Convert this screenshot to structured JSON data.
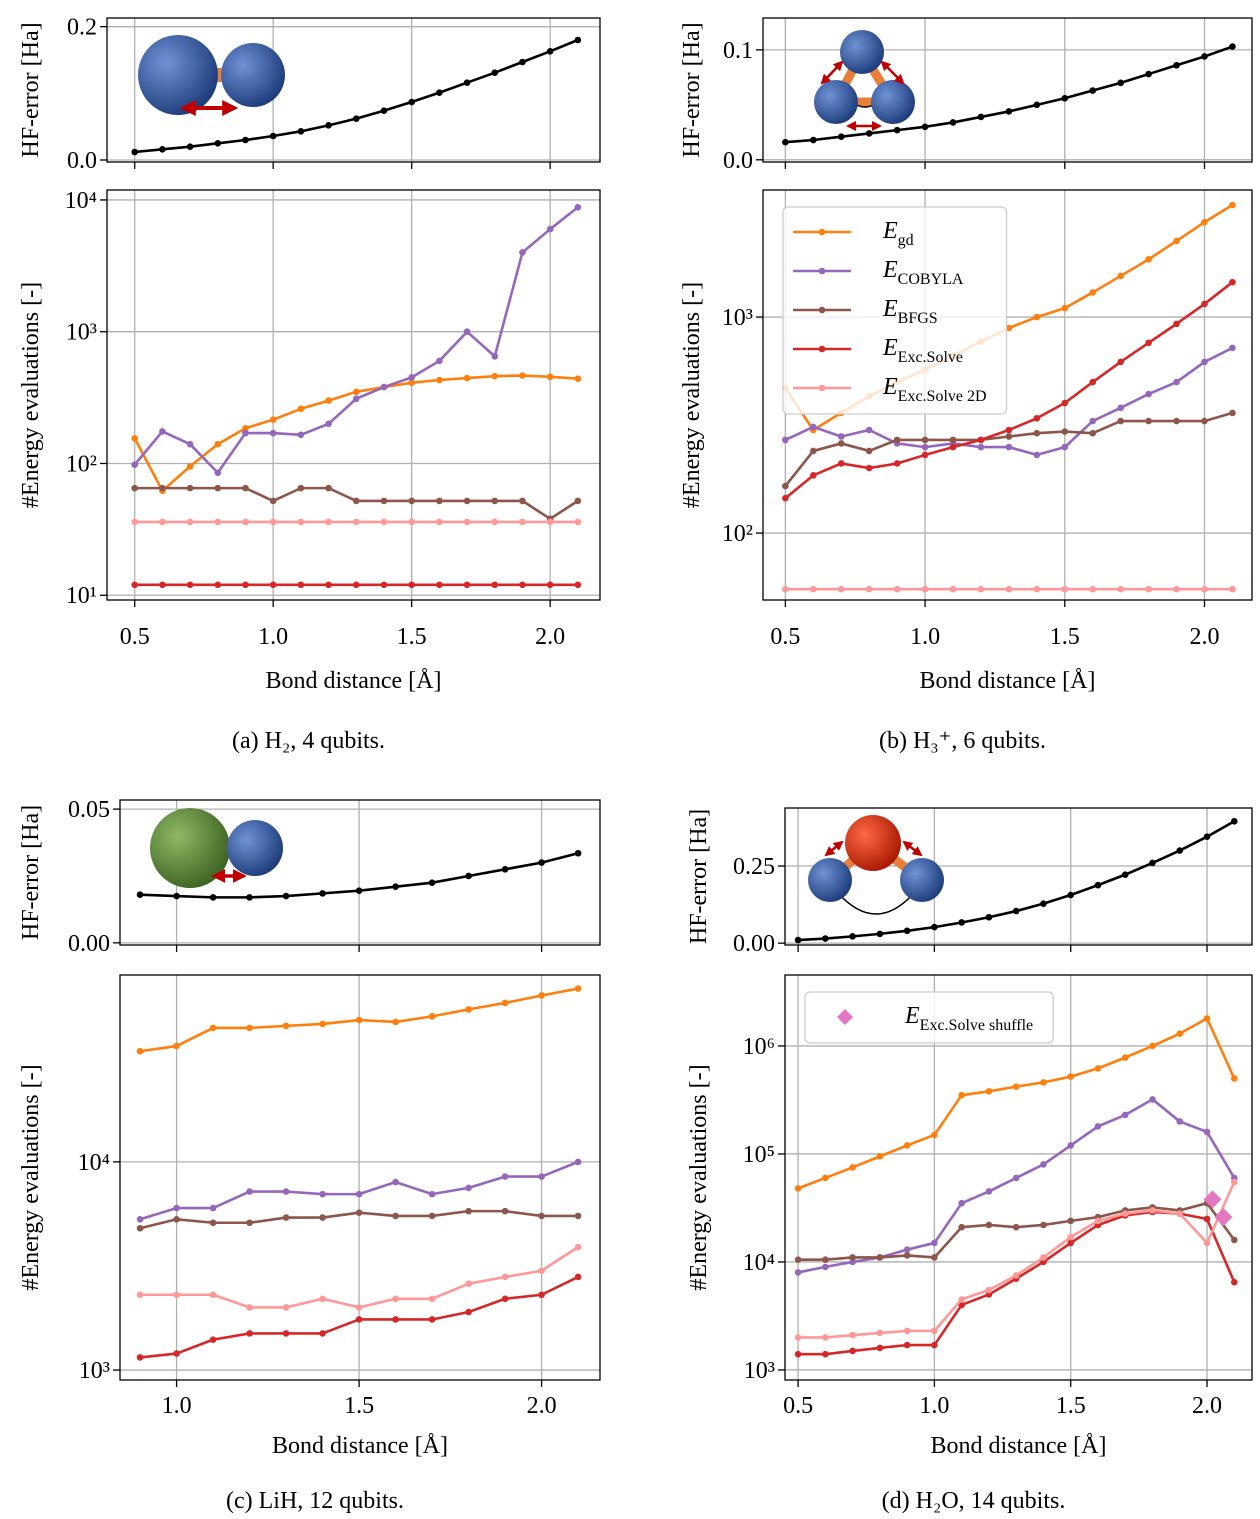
{
  "chart_data": [
    {
      "type": "line",
      "ylabel": "HF-error [Ha]",
      "x": [
        0.5,
        0.6,
        0.7,
        0.8,
        0.9,
        1.0,
        1.1,
        1.2,
        1.3,
        1.4,
        1.5,
        1.6,
        1.7,
        1.8,
        1.9,
        2.0,
        2.1
      ],
      "series": [
        {
          "color": "#000000",
          "values": [
            0.012,
            0.016,
            0.02,
            0.025,
            0.03,
            0.036,
            0.043,
            0.052,
            0.062,
            0.074,
            0.087,
            0.101,
            0.116,
            0.131,
            0.147,
            0.163,
            0.18
          ]
        }
      ],
      "xlim": [
        0.4,
        2.18
      ],
      "ylim": [
        -0.003,
        0.213
      ],
      "xticks": [
        0.5,
        {
          "value": 1.0,
          "label": "1.0"
        },
        1.5,
        {
          "value": 2.0,
          "label": "2.0"
        }
      ],
      "yticks": [
        {
          "value": 0,
          "label": "0.0"
        },
        0.2
      ],
      "grid": true
    },
    {
      "type": "line",
      "ylabel": "#Energy evaluations [-]",
      "xlabel": "Bond distance [Å]",
      "caption": "(a) H₂, 4 qubits.",
      "yscale": "log",
      "x": [
        0.5,
        0.6,
        0.7,
        0.8,
        0.9,
        1.0,
        1.1,
        1.2,
        1.3,
        1.4,
        1.5,
        1.6,
        1.7,
        1.8,
        1.9,
        2.0,
        2.1
      ],
      "series": [
        {
          "color": "#ff7f0e",
          "values": [
            155,
            62,
            95,
            140,
            185,
            215,
            260,
            300,
            350,
            380,
            410,
            430,
            445,
            460,
            465,
            455,
            440
          ]
        },
        {
          "color": "#9467bd",
          "values": [
            98,
            175,
            140,
            85,
            170,
            170,
            165,
            200,
            310,
            380,
            450,
            600,
            1000,
            650,
            4000,
            6000,
            8800
          ]
        },
        {
          "color": "#8c564b",
          "values": [
            65,
            65,
            65,
            65,
            65,
            52,
            65,
            65,
            52,
            52,
            52,
            52,
            52,
            52,
            52,
            38,
            52
          ]
        },
        {
          "color": "#d62728",
          "values": [
            12,
            12,
            12,
            12,
            12,
            12,
            12,
            12,
            12,
            12,
            12,
            12,
            12,
            12,
            12,
            12,
            12
          ]
        },
        {
          "color": "#ff9896",
          "values": [
            36,
            36,
            36,
            36,
            36,
            36,
            36,
            36,
            36,
            36,
            36,
            36,
            36,
            36,
            36,
            36,
            36
          ]
        }
      ],
      "xlim": [
        0.4,
        2.18
      ],
      "ylim": [
        9.2,
        11900
      ],
      "xticks": [
        0.5,
        {
          "value": 1.0,
          "label": "1.0"
        },
        1.5,
        {
          "value": 2.0,
          "label": "2.0"
        }
      ],
      "yticks": [
        {
          "value": 10,
          "label": "10¹"
        },
        {
          "value": 100,
          "label": "10²"
        },
        {
          "value": 1000,
          "label": "10³"
        },
        {
          "value": 10000,
          "label": "10⁴"
        }
      ],
      "grid": true
    },
    {
      "type": "line",
      "ylabel": "HF-error [Ha]",
      "x": [
        0.5,
        0.6,
        0.7,
        0.8,
        0.9,
        1.0,
        1.1,
        1.2,
        1.3,
        1.4,
        1.5,
        1.6,
        1.7,
        1.8,
        1.9,
        2.0,
        2.1
      ],
      "series": [
        {
          "color": "#000000",
          "values": [
            0.016,
            0.018,
            0.021,
            0.024,
            0.027,
            0.03,
            0.034,
            0.039,
            0.044,
            0.05,
            0.056,
            0.063,
            0.07,
            0.078,
            0.086,
            0.094,
            0.103
          ]
        }
      ],
      "xlim": [
        0.42,
        2.17
      ],
      "ylim": [
        -0.002,
        0.129
      ],
      "xticks": [
        0.5,
        {
          "value": 1.0,
          "label": "1.0"
        },
        1.5,
        {
          "value": 2.0,
          "label": "2.0"
        }
      ],
      "yticks": [
        {
          "value": 0,
          "label": "0.0"
        },
        0.1
      ],
      "grid": true
    },
    {
      "type": "line",
      "ylabel": "#Energy evaluations [-]",
      "xlabel": "Bond distance [Å]",
      "caption": "(b) H₃⁺, 6 qubits.",
      "yscale": "log",
      "legend": "upper left",
      "x": [
        0.5,
        0.6,
        0.7,
        0.8,
        0.9,
        1.0,
        1.1,
        1.2,
        1.3,
        1.4,
        1.5,
        1.6,
        1.7,
        1.8,
        1.9,
        2.0,
        2.1
      ],
      "series": [
        {
          "name": "E_gd",
          "color": "#ff7f0e",
          "values": [
            470,
            300,
            360,
            430,
            500,
            570,
            660,
            770,
            890,
            1000,
            1100,
            1300,
            1550,
            1850,
            2250,
            2750,
            3300
          ]
        },
        {
          "name": "E_COBYLA",
          "color": "#9467bd",
          "values": [
            270,
            310,
            280,
            300,
            260,
            250,
            260,
            250,
            250,
            230,
            250,
            330,
            380,
            440,
            500,
            620,
            720
          ]
        },
        {
          "name": "E_BFGS",
          "color": "#8c564b",
          "values": [
            165,
            240,
            260,
            240,
            270,
            270,
            270,
            270,
            280,
            290,
            295,
            290,
            330,
            330,
            330,
            330,
            360
          ]
        },
        {
          "name": "E_Exc.Solve",
          "color": "#d62728",
          "values": [
            145,
            185,
            210,
            200,
            210,
            230,
            250,
            270,
            300,
            340,
            400,
            500,
            620,
            760,
            930,
            1150,
            1450
          ]
        },
        {
          "name": "E_Exc.Solve 2D",
          "color": "#ff9896",
          "values": [
            55,
            55,
            55,
            55,
            55,
            55,
            55,
            55,
            55,
            55,
            55,
            55,
            55,
            55,
            55,
            55,
            55
          ]
        }
      ],
      "xlim": [
        0.42,
        2.17
      ],
      "ylim": [
        49,
        3874
      ],
      "xticks": [
        0.5,
        {
          "value": 1.0,
          "label": "1.0"
        },
        1.5,
        {
          "value": 2.0,
          "label": "2.0"
        }
      ],
      "yticks": [
        {
          "value": 100,
          "label": "10²"
        },
        {
          "value": 1000,
          "label": "10³"
        }
      ],
      "grid": true
    },
    {
      "type": "line",
      "ylabel": "HF-error [Ha]",
      "x": [
        0.9,
        1.0,
        1.1,
        1.2,
        1.3,
        1.4,
        1.5,
        1.6,
        1.7,
        1.8,
        1.9,
        2.0,
        2.1
      ],
      "series": [
        {
          "color": "#000000",
          "values": [
            0.018,
            0.0175,
            0.017,
            0.017,
            0.0175,
            0.0185,
            0.0195,
            0.021,
            0.0225,
            0.025,
            0.0275,
            0.03,
            0.0335
          ]
        }
      ],
      "xlim": [
        0.845,
        2.16
      ],
      "ylim": [
        -0.0008,
        0.0534
      ],
      "xticks": [
        {
          "value": 1.0,
          "label": "1.0"
        },
        1.5,
        {
          "value": 2.0,
          "label": "2.0"
        }
      ],
      "yticks": [
        {
          "value": 0,
          "label": "0.00"
        },
        0.05
      ],
      "grid": true
    },
    {
      "type": "line",
      "ylabel": "#Energy evaluations [-]",
      "xlabel": "Bond distance [Å]",
      "caption": "(c) LiH, 12 qubits.",
      "yscale": "log",
      "x": [
        0.9,
        1.0,
        1.1,
        1.2,
        1.3,
        1.4,
        1.5,
        1.6,
        1.7,
        1.8,
        1.9,
        2.0,
        2.1
      ],
      "series": [
        {
          "color": "#ff7f0e",
          "values": [
            34000,
            36000,
            44000,
            44000,
            45000,
            46000,
            48000,
            47000,
            50000,
            54000,
            58000,
            63000,
            68000
          ]
        },
        {
          "color": "#9467bd",
          "values": [
            5300,
            6000,
            6000,
            7200,
            7200,
            7000,
            7000,
            8000,
            7000,
            7500,
            8500,
            8500,
            10000
          ]
        },
        {
          "color": "#8c564b",
          "values": [
            4800,
            5300,
            5100,
            5100,
            5400,
            5400,
            5700,
            5500,
            5500,
            5800,
            5800,
            5500,
            5500
          ]
        },
        {
          "color": "#d62728",
          "values": [
            1150,
            1200,
            1400,
            1500,
            1500,
            1500,
            1750,
            1750,
            1750,
            1900,
            2200,
            2300,
            2800
          ]
        },
        {
          "color": "#ff9896",
          "values": [
            2300,
            2300,
            2300,
            2000,
            2000,
            2200,
            2000,
            2200,
            2200,
            2600,
            2800,
            3000,
            3900
          ]
        }
      ],
      "xlim": [
        0.845,
        2.16
      ],
      "ylim": [
        896,
        79000
      ],
      "xticks": [
        {
          "value": 1.0,
          "label": "1.0"
        },
        1.5,
        {
          "value": 2.0,
          "label": "2.0"
        }
      ],
      "yticks": [
        {
          "value": 1000,
          "label": "10³"
        },
        {
          "value": 10000,
          "label": "10⁴"
        }
      ],
      "grid": true
    },
    {
      "type": "line",
      "ylabel": "HF-error [Ha]",
      "x": [
        0.5,
        0.6,
        0.7,
        0.8,
        0.9,
        1.0,
        1.1,
        1.2,
        1.3,
        1.4,
        1.5,
        1.6,
        1.7,
        1.8,
        1.9,
        2.0,
        2.1
      ],
      "series": [
        {
          "color": "#000000",
          "values": [
            0.01,
            0.015,
            0.022,
            0.03,
            0.04,
            0.052,
            0.067,
            0.084,
            0.104,
            0.128,
            0.156,
            0.188,
            0.222,
            0.26,
            0.3,
            0.345,
            0.395
          ]
        }
      ],
      "xlim": [
        0.452,
        2.165
      ],
      "ylim": [
        -0.006,
        0.438
      ],
      "xticks": [
        0.5,
        {
          "value": 1.0,
          "label": "1.0"
        },
        1.5,
        {
          "value": 2.0,
          "label": "2.0"
        }
      ],
      "yticks": [
        {
          "value": 0,
          "label": "0.00"
        },
        0.25
      ],
      "grid": true
    },
    {
      "type": "line",
      "ylabel": "#Energy evaluations [-]",
      "xlabel": "Bond distance [Å]",
      "caption": "(d) H₂O, 14 qubits.",
      "yscale": "log",
      "legend": "upper left",
      "x": [
        0.5,
        0.6,
        0.7,
        0.8,
        0.9,
        1.0,
        1.1,
        1.2,
        1.3,
        1.4,
        1.5,
        1.6,
        1.7,
        1.8,
        1.9,
        2.0,
        2.1
      ],
      "series": [
        {
          "color": "#ff7f0e",
          "values": [
            48000,
            60000,
            75000,
            95000,
            120000,
            150000,
            350000,
            380000,
            420000,
            460000,
            520000,
            620000,
            780000,
            1000000,
            1300000,
            1800000,
            500000
          ]
        },
        {
          "color": "#9467bd",
          "values": [
            8000,
            9000,
            10000,
            11000,
            13000,
            15000,
            35000,
            45000,
            60000,
            80000,
            120000,
            180000,
            230000,
            320000,
            200000,
            160000,
            60000
          ]
        },
        {
          "color": "#8c564b",
          "values": [
            10500,
            10500,
            11000,
            11000,
            11500,
            11000,
            21000,
            22000,
            21000,
            22000,
            24000,
            26000,
            30000,
            32000,
            30000,
            35000,
            16000
          ]
        },
        {
          "color": "#d62728",
          "values": [
            1400,
            1400,
            1500,
            1600,
            1700,
            1700,
            4000,
            5000,
            7000,
            10000,
            15000,
            22000,
            27000,
            29000,
            28000,
            25000,
            6500
          ]
        },
        {
          "color": "#ff9896",
          "values": [
            2000,
            2000,
            2100,
            2200,
            2300,
            2300,
            4500,
            5500,
            7500,
            11000,
            17000,
            24000,
            28000,
            30000,
            28000,
            15000,
            55000
          ]
        },
        {
          "name": "E_Exc.Solve shuffle",
          "color": "#e377c2",
          "marker": "D",
          "x": [
            2.02,
            2.06
          ],
          "values": [
            38000,
            26000
          ]
        }
      ],
      "xlim": [
        0.452,
        2.165
      ],
      "ylim": [
        807,
        4540000
      ],
      "xticks": [
        0.5,
        {
          "value": 1.0,
          "label": "1.0"
        },
        1.5,
        {
          "value": 2.0,
          "label": "2.0"
        }
      ],
      "yticks": [
        {
          "value": 1000,
          "label": "10³"
        },
        {
          "value": 10000,
          "label": "10⁴"
        },
        {
          "value": 100000,
          "label": "10⁵"
        },
        {
          "value": 1000000,
          "label": "10⁶"
        }
      ],
      "grid": true
    }
  ]
}
